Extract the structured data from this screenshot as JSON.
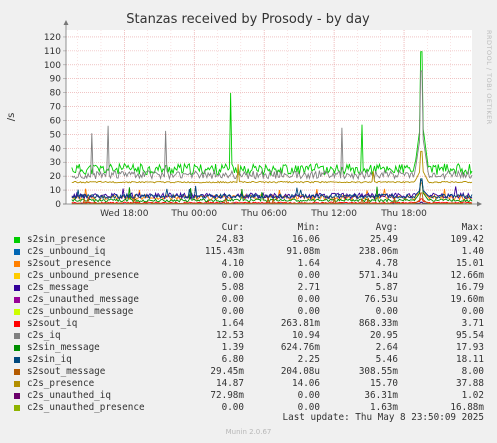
{
  "chart_data": {
    "type": "line",
    "title": "Stanzas received by Prosody - by day",
    "ylabel": "/s",
    "side_label": "RRDTOOL / TOBI OETIKER",
    "ylim": [
      0,
      125
    ],
    "y_ticks": [
      0,
      10,
      20,
      30,
      40,
      50,
      60,
      70,
      80,
      90,
      100,
      110,
      120
    ],
    "x_range": [
      "Wed 13:00",
      "Thu 23:50"
    ],
    "x_ticks": [
      {
        "label": "Wed 18:00",
        "hours": 5
      },
      {
        "label": "Thu 00:00",
        "hours": 11
      },
      {
        "label": "Thu 06:00",
        "hours": 17
      },
      {
        "label": "Thu 12:00",
        "hours": 23
      },
      {
        "label": "Thu 18:00",
        "hours": 29
      }
    ],
    "grid": true,
    "columns": [
      "Cur:",
      "Min:",
      "Avg:",
      "Max:"
    ],
    "series": [
      {
        "name": "s2sin_presence",
        "color": "#00cc00",
        "cur": "24.83",
        "min": "16.06",
        "avg": "25.49",
        "max": "109.42",
        "typical": 25,
        "noise": 4
      },
      {
        "name": "c2s_unbound_iq",
        "color": "#0066b3",
        "cur": "115.43m",
        "min": "91.08m",
        "avg": "238.06m",
        "max": "1.40",
        "typical": 0.24,
        "noise": 0.1
      },
      {
        "name": "s2sout_presence",
        "color": "#ff8000",
        "cur": "4.10",
        "min": "1.64",
        "avg": "4.78",
        "max": "15.01",
        "typical": 4.8,
        "noise": 1.8
      },
      {
        "name": "c2s_unbound_presence",
        "color": "#ffcc00",
        "cur": "0.00",
        "min": "0.00",
        "avg": "571.34u",
        "max": "12.66m",
        "typical": 0.0006,
        "noise": 0
      },
      {
        "name": "c2s_message",
        "color": "#330099",
        "cur": "5.08",
        "min": "2.71",
        "avg": "5.87",
        "max": "16.79",
        "typical": 5.9,
        "noise": 2
      },
      {
        "name": "c2s_unauthed_message",
        "color": "#990099",
        "cur": "0.00",
        "min": "0.00",
        "avg": "76.53u",
        "max": "19.60m",
        "typical": 8e-05,
        "noise": 0
      },
      {
        "name": "c2s_unbound_message",
        "color": "#ccff00",
        "cur": "0.00",
        "min": "0.00",
        "avg": "0.00",
        "max": "0.00",
        "typical": 0,
        "noise": 0
      },
      {
        "name": "s2sout_iq",
        "color": "#ff0000",
        "cur": "1.64",
        "min": "263.81m",
        "avg": "868.33m",
        "max": "3.71",
        "typical": 0.87,
        "noise": 0.5
      },
      {
        "name": "c2s_iq",
        "color": "#808080",
        "cur": "12.53",
        "min": "10.94",
        "avg": "20.95",
        "max": "95.54",
        "typical": 21,
        "noise": 3
      },
      {
        "name": "s2sin_message",
        "color": "#008f00",
        "cur": "1.39",
        "min": "624.76m",
        "avg": "2.64",
        "max": "17.93",
        "typical": 2.6,
        "noise": 1
      },
      {
        "name": "s2sin_iq",
        "color": "#00487d",
        "cur": "6.80",
        "min": "2.25",
        "avg": "5.46",
        "max": "18.11",
        "typical": 5.5,
        "noise": 1.5
      },
      {
        "name": "s2sout_message",
        "color": "#b35a00",
        "cur": "29.45m",
        "min": "204.08u",
        "avg": "308.55m",
        "max": "8.00",
        "typical": 0.3,
        "noise": 0.4
      },
      {
        "name": "c2s_presence",
        "color": "#b38f00",
        "cur": "14.87",
        "min": "14.06",
        "avg": "15.70",
        "max": "37.88",
        "typical": 15.7,
        "noise": 0.5
      },
      {
        "name": "c2s_unauthed_iq",
        "color": "#6b006b",
        "cur": "72.98m",
        "min": "0.00",
        "avg": "36.31m",
        "max": "1.02",
        "typical": 0.04,
        "noise": 0.05
      },
      {
        "name": "c2s_unauthed_presence",
        "color": "#8fb300",
        "cur": "0.00",
        "min": "0.00",
        "avg": "1.63m",
        "max": "16.88m",
        "typical": 0.002,
        "noise": 0
      }
    ],
    "last_update": "Last update: Thu May  8 23:50:09 2025"
  },
  "footer": "Munin 2.0.67"
}
